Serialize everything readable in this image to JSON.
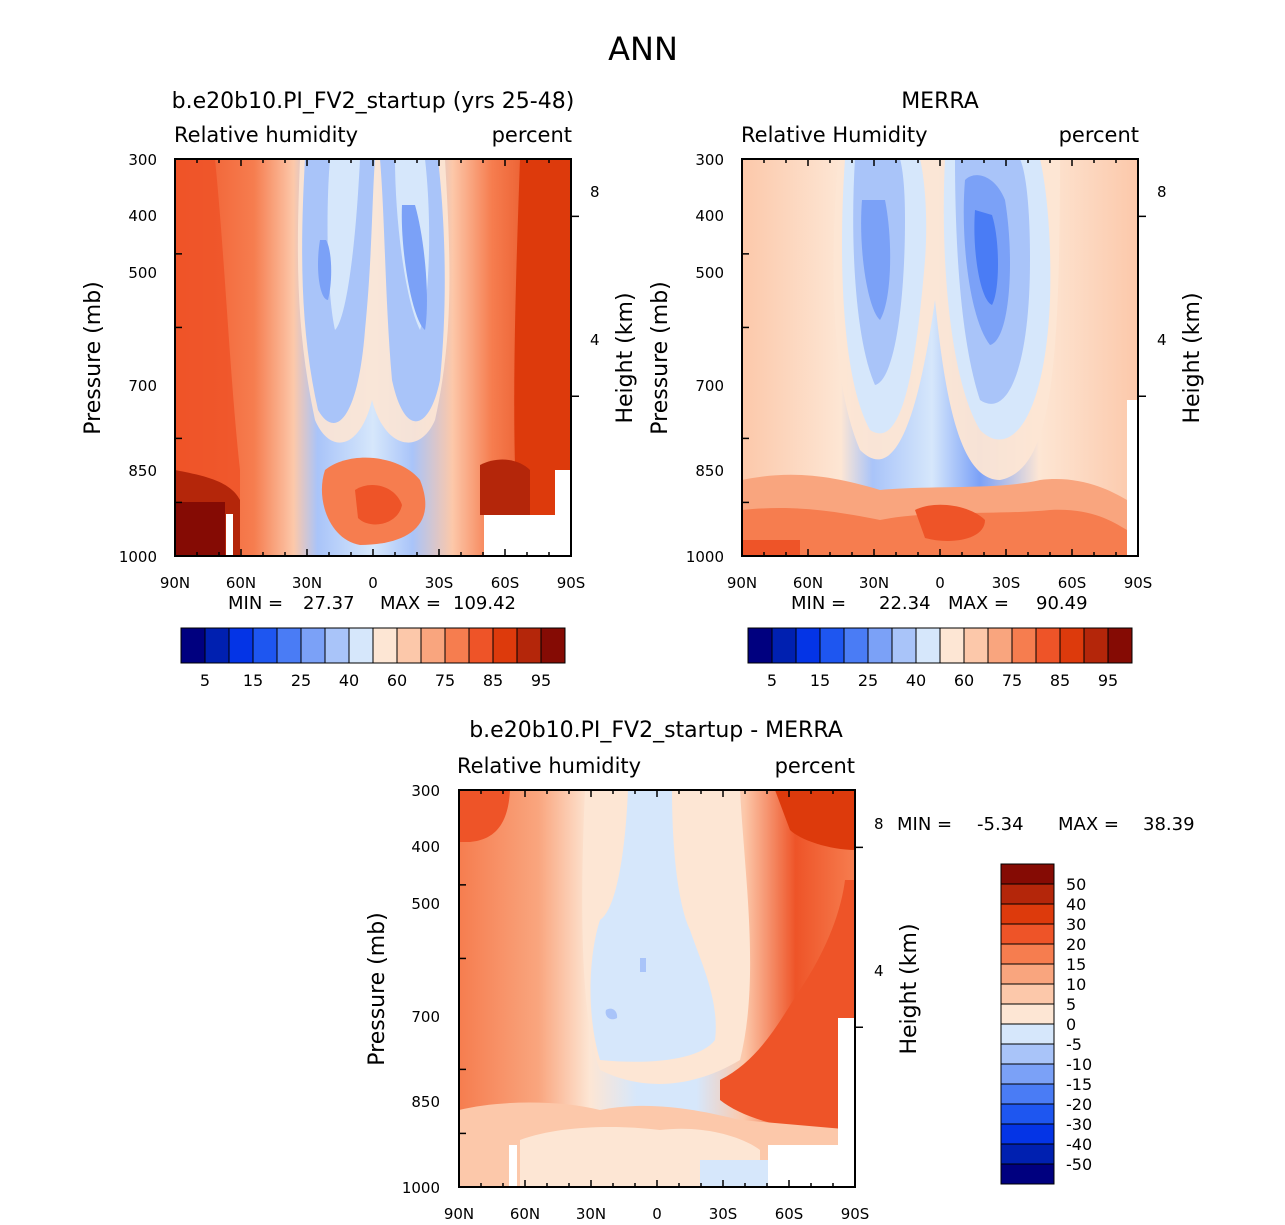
{
  "page_title": "ANN",
  "chart_data": [
    {
      "type": "heatmap",
      "title": "b.e20b10.PI_FV2_startup (yrs 25-48)",
      "subtitle_left": "Relative humidity",
      "subtitle_right": "percent",
      "ylabel": "Pressure (mb)",
      "ylabel_right": "Height (km)",
      "x_ticks": [
        "90N",
        "60N",
        "30N",
        "0",
        "30S",
        "60S",
        "90S"
      ],
      "y_ticks": [
        "300",
        "400",
        "500",
        "700",
        "850",
        "1000"
      ],
      "y_ticks_right": [
        "8",
        "4"
      ],
      "ylim": [
        1000,
        300
      ],
      "stats": {
        "min_label": "MIN =",
        "min": "27.37",
        "max_label": "MAX =",
        "max": "109.42"
      },
      "colorbar": {
        "orientation": "horizontal",
        "colors": [
          "#00007f",
          "#0020b0",
          "#0434e6",
          "#1e56f0",
          "#4a7cf5",
          "#7ba1f7",
          "#a9c4f9",
          "#d6e7fb",
          "#fde6d4",
          "#fcc8aa",
          "#f9a57e",
          "#f67d4f",
          "#ee5428",
          "#dd3a0c",
          "#b4260a",
          "#850b04"
        ],
        "labels": [
          "5",
          "15",
          "25",
          "40",
          "60",
          "75",
          "85",
          "95"
        ]
      }
    },
    {
      "type": "heatmap",
      "title": "MERRA",
      "subtitle_left": "Relative Humidity",
      "subtitle_right": "percent",
      "ylabel": "Pressure (mb)",
      "ylabel_right": "Height (km)",
      "x_ticks": [
        "90N",
        "60N",
        "30N",
        "0",
        "30S",
        "60S",
        "90S"
      ],
      "y_ticks": [
        "300",
        "400",
        "500",
        "700",
        "850",
        "1000"
      ],
      "y_ticks_right": [
        "8",
        "4"
      ],
      "ylim": [
        1000,
        300
      ],
      "stats": {
        "min_label": "MIN =",
        "min": "22.34",
        "max_label": "MAX =",
        "max": "90.49"
      },
      "colorbar": {
        "orientation": "horizontal",
        "colors": [
          "#00007f",
          "#0020b0",
          "#0434e6",
          "#1e56f0",
          "#4a7cf5",
          "#7ba1f7",
          "#a9c4f9",
          "#d6e7fb",
          "#fde6d4",
          "#fcc8aa",
          "#f9a57e",
          "#f67d4f",
          "#ee5428",
          "#dd3a0c",
          "#b4260a",
          "#850b04"
        ],
        "labels": [
          "5",
          "15",
          "25",
          "40",
          "60",
          "75",
          "85",
          "95"
        ]
      }
    },
    {
      "type": "heatmap",
      "title": "b.e20b10.PI_FV2_startup - MERRA",
      "subtitle_left": "Relative humidity",
      "subtitle_right": "percent",
      "ylabel": "Pressure (mb)",
      "ylabel_right": "Height (km)",
      "x_ticks": [
        "90N",
        "60N",
        "30N",
        "0",
        "30S",
        "60S",
        "90S"
      ],
      "y_ticks": [
        "300",
        "400",
        "500",
        "700",
        "850",
        "1000"
      ],
      "y_ticks_right": [
        "8",
        "4"
      ],
      "ylim": [
        1000,
        300
      ],
      "stats": {
        "min_label": "MIN =",
        "min": "-5.34",
        "max_label": "MAX =",
        "max": "38.39"
      },
      "colorbar": {
        "orientation": "vertical",
        "colors": [
          "#850b04",
          "#b4260a",
          "#dd3a0c",
          "#ee5428",
          "#f67d4f",
          "#f9a57e",
          "#fcc8aa",
          "#fde6d4",
          "#d6e7fb",
          "#a9c4f9",
          "#7ba1f7",
          "#4a7cf5",
          "#1e56f0",
          "#0434e6",
          "#0020b0",
          "#00007f"
        ],
        "labels": [
          "50",
          "40",
          "30",
          "20",
          "15",
          "10",
          "5",
          "0",
          "-5",
          "-10",
          "-15",
          "-20",
          "-30",
          "-40",
          "-50"
        ]
      }
    }
  ]
}
